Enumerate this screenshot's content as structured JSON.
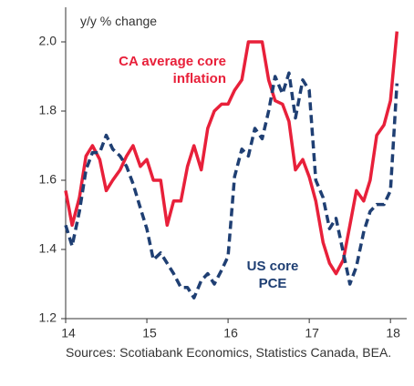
{
  "chart_data": {
    "type": "line",
    "y_label": "y/y % change",
    "source": "Sources: Scotiabank Economics, Statistics Canada, BEA.",
    "x": [
      14,
      14.08,
      14.17,
      14.25,
      14.33,
      14.42,
      14.5,
      14.58,
      14.67,
      14.75,
      14.83,
      14.92,
      15,
      15.08,
      15.17,
      15.25,
      15.33,
      15.42,
      15.5,
      15.58,
      15.67,
      15.75,
      15.83,
      15.92,
      16,
      16.08,
      16.17,
      16.25,
      16.33,
      16.42,
      16.5,
      16.58,
      16.67,
      16.75,
      16.83,
      16.92,
      17,
      17.08,
      17.17,
      17.25,
      17.33,
      17.42,
      17.5,
      17.58,
      17.67,
      17.75,
      17.83,
      17.92,
      18,
      18.08
    ],
    "series": [
      {
        "name": "CA average core inflation",
        "color": "#e8203a",
        "dashed": false,
        "values": [
          1.57,
          1.47,
          1.55,
          1.67,
          1.7,
          1.66,
          1.57,
          1.6,
          1.63,
          1.67,
          1.7,
          1.64,
          1.66,
          1.6,
          1.6,
          1.47,
          1.54,
          1.54,
          1.64,
          1.7,
          1.63,
          1.75,
          1.8,
          1.82,
          1.82,
          1.86,
          1.89,
          2.0,
          2.0,
          2.0,
          1.89,
          1.83,
          1.82,
          1.77,
          1.63,
          1.66,
          1.61,
          1.54,
          1.42,
          1.36,
          1.33,
          1.37,
          1.47,
          1.57,
          1.54,
          1.6,
          1.73,
          1.76,
          1.83,
          2.03
        ]
      },
      {
        "name": "US core PCE",
        "color": "#1f3f73",
        "dashed": true,
        "values": [
          1.47,
          1.41,
          1.51,
          1.63,
          1.68,
          1.68,
          1.73,
          1.69,
          1.67,
          1.64,
          1.59,
          1.52,
          1.46,
          1.37,
          1.39,
          1.36,
          1.33,
          1.29,
          1.29,
          1.26,
          1.31,
          1.33,
          1.3,
          1.34,
          1.38,
          1.61,
          1.69,
          1.67,
          1.75,
          1.72,
          1.8,
          1.9,
          1.85,
          1.91,
          1.78,
          1.89,
          1.86,
          1.6,
          1.55,
          1.46,
          1.49,
          1.39,
          1.3,
          1.35,
          1.45,
          1.51,
          1.53,
          1.53,
          1.57,
          1.88
        ]
      }
    ],
    "xlim": [
      14,
      18.2
    ],
    "xticks": [
      14,
      15,
      16,
      17,
      18
    ],
    "ylim": [
      1.2,
      2.1
    ],
    "yticks": [
      1.2,
      1.4,
      1.6,
      1.8,
      {
        "value": 2,
        "label": "2.0"
      }
    ],
    "grid": false
  }
}
